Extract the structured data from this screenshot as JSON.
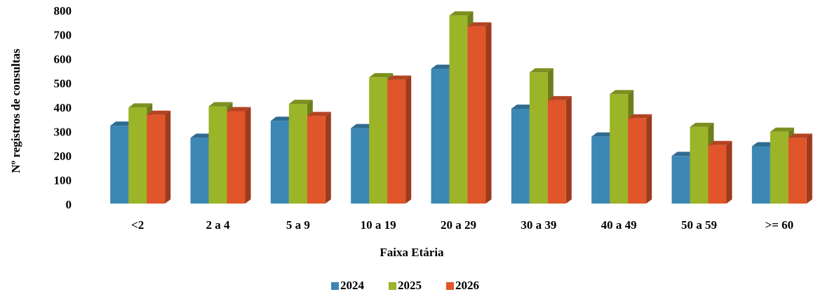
{
  "chart_data": {
    "type": "bar3d",
    "x_label": "Faixa Etária",
    "y_label": "Nº registros de consultas",
    "categories": [
      "<2",
      "2 a 4",
      "5 a 9",
      "10 a 19",
      "20 a 29",
      "30 a 39",
      "40 a 49",
      "50 a 59",
      ">= 60"
    ],
    "series": [
      {
        "name": "2024",
        "color": "#3c87b4",
        "values": [
          330,
          280,
          350,
          320,
          565,
          400,
          285,
          205,
          245
        ]
      },
      {
        "name": "2025",
        "color": "#9bb428",
        "values": [
          405,
          410,
          420,
          530,
          785,
          550,
          460,
          325,
          305
        ]
      },
      {
        "name": "2026",
        "color": "#e0552a",
        "values": [
          375,
          390,
          370,
          520,
          740,
          435,
          360,
          250,
          280
        ]
      }
    ],
    "ylim": [
      0,
      800
    ],
    "yticks": [
      0,
      100,
      200,
      300,
      400,
      500,
      600,
      700,
      800
    ],
    "grid": false,
    "legend": "bottom"
  }
}
